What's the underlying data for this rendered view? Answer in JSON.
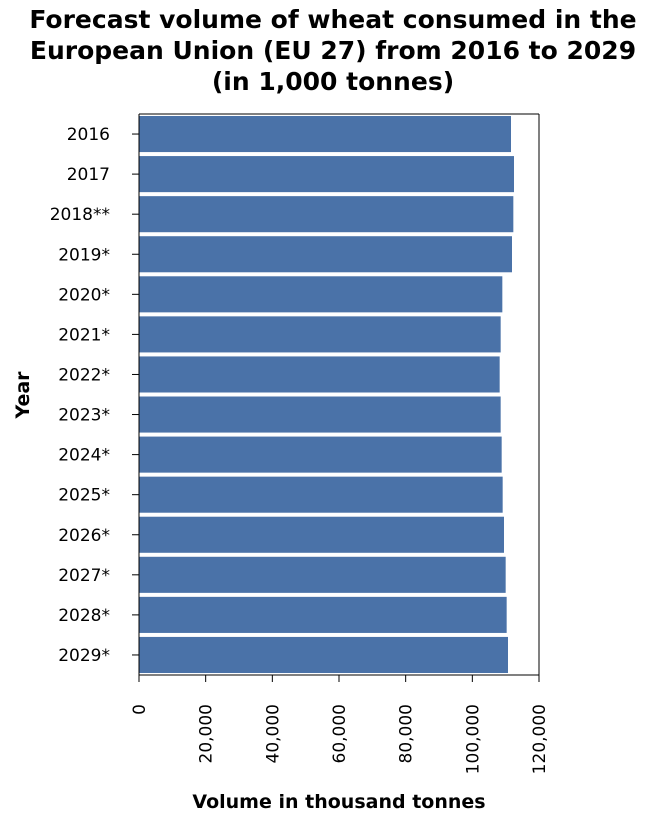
{
  "chart_data": {
    "type": "bar",
    "orientation": "horizontal",
    "title_lines": [
      "Forecast volume of wheat consumed in the",
      "European Union (EU 27) from 2016 to 2029",
      "(in 1,000 tonnes)"
    ],
    "xlabel": "Volume in thousand tonnes",
    "ylabel": "Year",
    "xlim": [
      0,
      120000
    ],
    "x_ticks": [
      0,
      20000,
      40000,
      60000,
      80000,
      100000,
      120000
    ],
    "x_tick_labels": [
      "0",
      "20,000",
      "40,000",
      "60,000",
      "80,000",
      "100,000",
      "120,000"
    ],
    "categories": [
      "2016",
      "2017",
      "2018**",
      "2019*",
      "2020*",
      "2021*",
      "2022*",
      "2023*",
      "2024*",
      "2025*",
      "2026*",
      "2027*",
      "2028*",
      "2029*"
    ],
    "values": [
      111600,
      112500,
      112300,
      111900,
      109000,
      108500,
      108200,
      108500,
      108800,
      109100,
      109500,
      110000,
      110300,
      110700
    ],
    "bar_color": "#4a72a8",
    "grid": false,
    "legend": "none"
  }
}
